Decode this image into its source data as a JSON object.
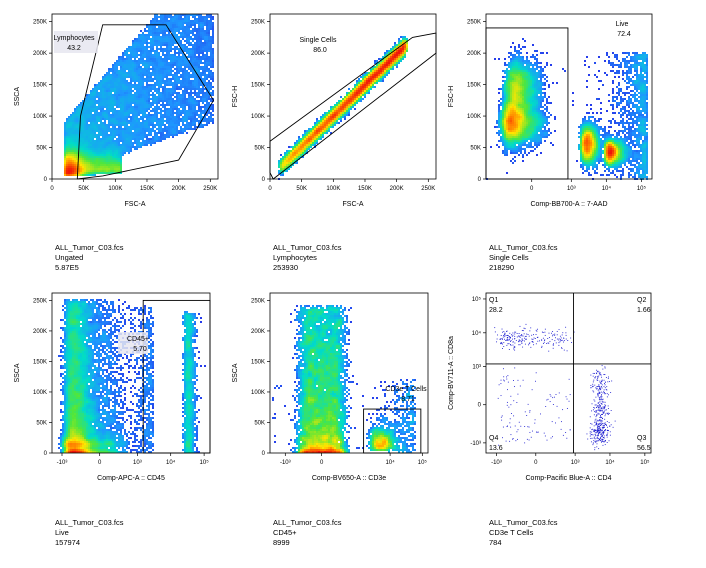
{
  "colors": {
    "gate": "#000000",
    "dots": "#1a1ad0",
    "density_low": "#1e3cff",
    "density_mid": "#00d8c0",
    "density_high": "#ffe000",
    "density_peak": "#ff2000"
  },
  "chart_data": [
    {
      "type": "scatter",
      "title": "",
      "xlabel": "FSC-A",
      "ylabel": "SSCA",
      "x_scale": "linear",
      "y_scale": "linear",
      "xlim": [
        0,
        262144
      ],
      "ylim": [
        0,
        262144
      ],
      "x_ticks": [
        {
          "v": 0,
          "label": "0"
        },
        {
          "v": 50000,
          "label": "50K"
        },
        {
          "v": 100000,
          "label": "100K"
        },
        {
          "v": 150000,
          "label": "150K"
        },
        {
          "v": 200000,
          "label": "200K"
        },
        {
          "v": 250000,
          "label": "250K"
        }
      ],
      "y_ticks": [
        {
          "v": 0,
          "label": "0"
        },
        {
          "v": 50000,
          "label": "50K"
        },
        {
          "v": 100000,
          "label": "100K"
        },
        {
          "v": 150000,
          "label": "150K"
        },
        {
          "v": 200000,
          "label": "200K"
        },
        {
          "v": 250000,
          "label": "250K"
        }
      ],
      "gate": {
        "name": "Lymphocytes",
        "value": "43.2",
        "shape": "polygon",
        "points": [
          [
            40000,
            0
          ],
          [
            45000,
            100000
          ],
          [
            80000,
            245000
          ],
          [
            180000,
            245000
          ],
          [
            255000,
            125000
          ],
          [
            200000,
            30000
          ],
          [
            80000,
            5000
          ]
        ]
      },
      "caption": {
        "file": "ALL_Tumor_C03.fcs",
        "population": "Ungated",
        "count": "5.87E5"
      }
    },
    {
      "type": "scatter",
      "title": "",
      "xlabel": "FSC-A",
      "ylabel": "FSC-H",
      "x_scale": "linear",
      "y_scale": "linear",
      "xlim": [
        0,
        262144
      ],
      "ylim": [
        0,
        262144
      ],
      "x_ticks": [
        {
          "v": 0,
          "label": "0"
        },
        {
          "v": 50000,
          "label": "50K"
        },
        {
          "v": 100000,
          "label": "100K"
        },
        {
          "v": 150000,
          "label": "150K"
        },
        {
          "v": 200000,
          "label": "200K"
        },
        {
          "v": 250000,
          "label": "250K"
        }
      ],
      "y_ticks": [
        {
          "v": 0,
          "label": "0"
        },
        {
          "v": 50000,
          "label": "50K"
        },
        {
          "v": 100000,
          "label": "100K"
        },
        {
          "v": 150000,
          "label": "150K"
        },
        {
          "v": 200000,
          "label": "200K"
        },
        {
          "v": 250000,
          "label": "250K"
        }
      ],
      "gate": {
        "name": "Single Cells",
        "value": "86.0",
        "shape": "polygon",
        "points": [
          [
            0,
            60000
          ],
          [
            225000,
            225000
          ],
          [
            262144,
            232000
          ],
          [
            262144,
            200000
          ],
          [
            5000,
            0
          ],
          [
            0,
            10000
          ]
        ]
      },
      "caption": {
        "file": "ALL_Tumor_C03.fcs",
        "population": "Lymphocytes",
        "count": "253930"
      }
    },
    {
      "type": "scatter",
      "title": "",
      "xlabel": "Comp-BB700-A :: 7-AAD",
      "ylabel": "FSC-H",
      "x_scale": "biex",
      "y_scale": "linear",
      "xlim": [
        -1500,
        200000
      ],
      "ylim": [
        0,
        262144
      ],
      "x_ticks": [
        {
          "v": 0,
          "label": "0"
        },
        {
          "v": 1000,
          "label": "10³"
        },
        {
          "v": 10000,
          "label": "10⁴"
        },
        {
          "v": 100000,
          "label": "10⁵"
        }
      ],
      "y_ticks": [
        {
          "v": 0,
          "label": "0"
        },
        {
          "v": 50000,
          "label": "50K"
        },
        {
          "v": 100000,
          "label": "100K"
        },
        {
          "v": 150000,
          "label": "150K"
        },
        {
          "v": 200000,
          "label": "200K"
        },
        {
          "v": 250000,
          "label": "250K"
        }
      ],
      "gate": {
        "name": "Live",
        "value": "72.4",
        "shape": "rect",
        "x": [
          -1500,
          800
        ],
        "y": [
          0,
          240000
        ]
      },
      "caption": {
        "file": "ALL_Tumor_C03.fcs",
        "population": "Single Cells",
        "count": "218290"
      }
    },
    {
      "type": "scatter",
      "title": "",
      "xlabel": "Comp-APC-A :: CD45",
      "ylabel": "SSCA",
      "x_scale": "biex",
      "y_scale": "linear",
      "xlim": [
        -2000,
        150000
      ],
      "ylim": [
        0,
        262144
      ],
      "x_ticks": [
        {
          "v": -1000,
          "label": "-10³"
        },
        {
          "v": 0,
          "label": "0"
        },
        {
          "v": 1000,
          "label": "10³"
        },
        {
          "v": 10000,
          "label": "10⁴"
        },
        {
          "v": 100000,
          "label": "10⁵"
        }
      ],
      "y_ticks": [
        {
          "v": 0,
          "label": "0"
        },
        {
          "v": 50000,
          "label": "50K"
        },
        {
          "v": 100000,
          "label": "100K"
        },
        {
          "v": 150000,
          "label": "150K"
        },
        {
          "v": 200000,
          "label": "200K"
        },
        {
          "v": 250000,
          "label": "250K"
        }
      ],
      "gate": {
        "name": "CD45+",
        "value": "5.70",
        "shape": "rect",
        "x": [
          1500,
          150000
        ],
        "y": [
          0,
          250000
        ]
      },
      "caption": {
        "file": "ALL_Tumor_C03.fcs",
        "population": "Live",
        "count": "157974"
      }
    },
    {
      "type": "scatter",
      "title": "",
      "xlabel": "Comp-BV650-A :: CD3e",
      "ylabel": "SSCA",
      "x_scale": "biex",
      "y_scale": "linear",
      "xlim": [
        -3000,
        150000
      ],
      "ylim": [
        0,
        262144
      ],
      "x_ticks": [
        {
          "v": -1000,
          "label": "-10³"
        },
        {
          "v": 0,
          "label": "0"
        },
        {
          "v": 10000,
          "label": "10⁴"
        },
        {
          "v": 100000,
          "label": "10⁵"
        }
      ],
      "y_ticks": [
        {
          "v": 0,
          "label": "0"
        },
        {
          "v": 50000,
          "label": "50K"
        },
        {
          "v": 100000,
          "label": "100K"
        },
        {
          "v": 150000,
          "label": "150K"
        },
        {
          "v": 200000,
          "label": "200K"
        },
        {
          "v": 250000,
          "label": "250K"
        }
      ],
      "gate": {
        "name": "CD3e T Cells",
        "value": "8.71",
        "shape": "rect",
        "x": [
          1500,
          90000
        ],
        "y": [
          0,
          72000
        ]
      },
      "caption": {
        "file": "ALL_Tumor_C03.fcs",
        "population": "CD45+",
        "count": "8999"
      }
    },
    {
      "type": "scatter",
      "title": "",
      "xlabel": "Comp-Pacific Blue-A :: CD4",
      "ylabel": "Comp-BV711-A :: CD8a",
      "x_scale": "biex",
      "y_scale": "biex",
      "xlim": [
        -2000,
        150000
      ],
      "ylim": [
        -2000,
        150000
      ],
      "x_ticks": [
        {
          "v": -1000,
          "label": "-10³"
        },
        {
          "v": 0,
          "label": "0"
        },
        {
          "v": 1000,
          "label": "10³"
        },
        {
          "v": 10000,
          "label": "10⁴"
        },
        {
          "v": 100000,
          "label": "10⁵"
        }
      ],
      "y_ticks": [
        {
          "v": -1000,
          "label": "-10³"
        },
        {
          "v": 0,
          "label": "0"
        },
        {
          "v": 1000,
          "label": "10³"
        },
        {
          "v": 10000,
          "label": "10⁴"
        },
        {
          "v": 100000,
          "label": "10⁵"
        }
      ],
      "quadrant_split": {
        "x": 900,
        "y": 1200
      },
      "quadrants": [
        {
          "name": "Q1",
          "value": "28.2",
          "corner": "top-left"
        },
        {
          "name": "Q2",
          "value": "1.66",
          "corner": "top-right"
        },
        {
          "name": "Q3",
          "value": "56.5",
          "corner": "bottom-right"
        },
        {
          "name": "Q4",
          "value": "13.6",
          "corner": "bottom-left"
        }
      ],
      "caption": {
        "file": "ALL_Tumor_C03.fcs",
        "population": "CD3e T Cells",
        "count": "784"
      }
    }
  ]
}
